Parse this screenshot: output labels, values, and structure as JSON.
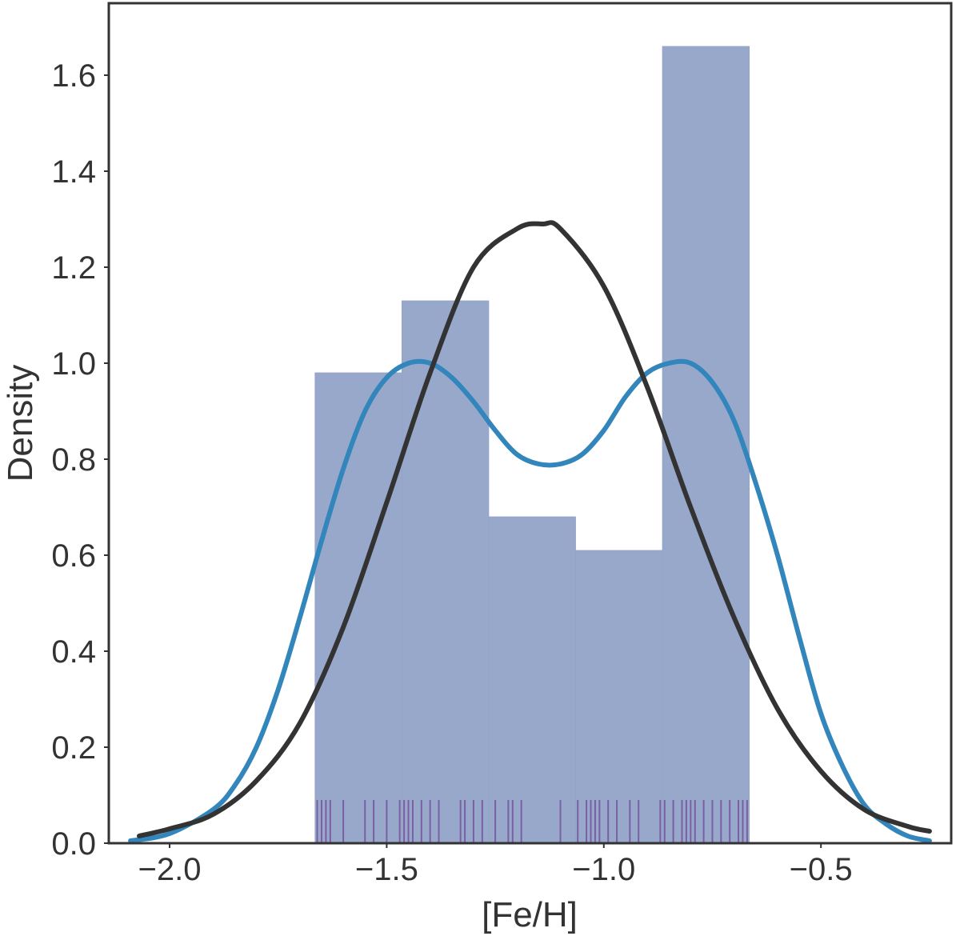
{
  "chart_data": {
    "type": "bar",
    "xlabel": "[Fe/H]",
    "ylabel": "Density",
    "xlim": [
      -2.14,
      -0.2
    ],
    "ylim": [
      0.0,
      1.75
    ],
    "x_ticks": [
      {
        "value": -2.0,
        "label": "−2.0"
      },
      {
        "value": -1.5,
        "label": "−1.5"
      },
      {
        "value": -1.0,
        "label": "−1.0"
      },
      {
        "value": -0.5,
        "label": "−0.5"
      }
    ],
    "y_ticks": [
      {
        "value": 0.0,
        "label": "0.0"
      },
      {
        "value": 0.2,
        "label": "0.2"
      },
      {
        "value": 0.4,
        "label": "0.4"
      },
      {
        "value": 0.6,
        "label": "0.6"
      },
      {
        "value": 0.8,
        "label": "0.8"
      },
      {
        "value": 1.0,
        "label": "1.0"
      },
      {
        "value": 1.2,
        "label": "1.2"
      },
      {
        "value": 1.4,
        "label": "1.4"
      },
      {
        "value": 1.6,
        "label": "1.6"
      }
    ],
    "grid": false,
    "histogram": {
      "bins": [
        {
          "x0": -1.665,
          "x1": -1.465,
          "density": 0.98
        },
        {
          "x0": -1.465,
          "x1": -1.265,
          "density": 1.13
        },
        {
          "x0": -1.265,
          "x1": -1.065,
          "density": 0.68
        },
        {
          "x0": -1.065,
          "x1": -0.865,
          "density": 0.61
        },
        {
          "x0": -0.865,
          "x1": -0.665,
          "density": 1.66
        }
      ],
      "color": "#98a8cb"
    },
    "rug": {
      "values": [
        -1.66,
        -1.65,
        -1.64,
        -1.63,
        -1.6,
        -1.55,
        -1.53,
        -1.5,
        -1.47,
        -1.46,
        -1.45,
        -1.44,
        -1.42,
        -1.4,
        -1.38,
        -1.33,
        -1.32,
        -1.3,
        -1.28,
        -1.25,
        -1.22,
        -1.21,
        -1.19,
        -1.1,
        -1.06,
        -1.04,
        -1.03,
        -1.02,
        -1.01,
        -0.99,
        -0.97,
        -0.94,
        -0.92,
        -0.87,
        -0.86,
        -0.84,
        -0.82,
        -0.81,
        -0.8,
        -0.79,
        -0.77,
        -0.75,
        -0.73,
        -0.71,
        -0.69,
        -0.68,
        -0.67
      ],
      "height": 0.09,
      "color": "#7a5fa5"
    },
    "series": [
      {
        "kind": "kde",
        "color": "#3286bb",
        "x": [
          -2.09,
          -2.0,
          -1.9,
          -1.85,
          -1.8,
          -1.75,
          -1.7,
          -1.65,
          -1.6,
          -1.55,
          -1.5,
          -1.45,
          -1.4,
          -1.35,
          -1.3,
          -1.25,
          -1.2,
          -1.15,
          -1.1,
          -1.05,
          -1.0,
          -0.95,
          -0.9,
          -0.85,
          -0.8,
          -0.75,
          -0.7,
          -0.65,
          -0.6,
          -0.55,
          -0.5,
          -0.45,
          -0.4,
          -0.35,
          -0.3,
          -0.25
        ],
        "y": [
          0.005,
          0.02,
          0.07,
          0.12,
          0.2,
          0.32,
          0.47,
          0.63,
          0.78,
          0.9,
          0.97,
          1.0,
          1.0,
          0.97,
          0.92,
          0.86,
          0.81,
          0.79,
          0.79,
          0.81,
          0.86,
          0.93,
          0.98,
          1.0,
          1.0,
          0.96,
          0.88,
          0.75,
          0.6,
          0.43,
          0.27,
          0.16,
          0.08,
          0.04,
          0.015,
          0.005
        ]
      },
      {
        "kind": "normal fit",
        "color": "#333333",
        "x": [
          -2.07,
          -2.0,
          -1.9,
          -1.8,
          -1.7,
          -1.6,
          -1.5,
          -1.4,
          -1.3,
          -1.2,
          -1.14,
          -1.1,
          -1.0,
          -0.9,
          -0.8,
          -0.7,
          -0.6,
          -0.5,
          -0.4,
          -0.3,
          -0.25
        ],
        "y": [
          0.015,
          0.03,
          0.06,
          0.13,
          0.25,
          0.45,
          0.71,
          0.98,
          1.2,
          1.28,
          1.29,
          1.28,
          1.16,
          0.95,
          0.7,
          0.47,
          0.28,
          0.15,
          0.07,
          0.035,
          0.025
        ]
      }
    ]
  }
}
